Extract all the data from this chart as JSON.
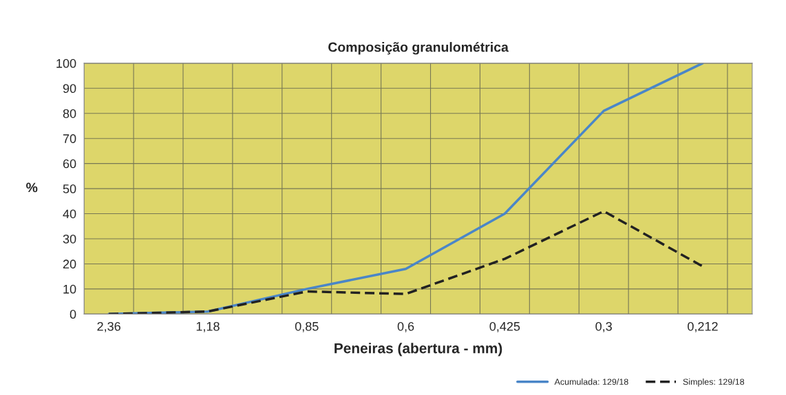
{
  "chart_data": {
    "type": "line",
    "title": "Composição granulométrica",
    "xlabel": "Peneiras (abertura - mm)",
    "ylabel": "%",
    "categories": [
      "2,36",
      "1,18",
      "0,85",
      "0,6",
      "0,425",
      "0,3",
      "0,212"
    ],
    "series": [
      {
        "name": "Acumulada: 129/18",
        "color": "#4a86c8",
        "values": [
          0,
          1,
          10,
          18,
          40,
          81,
          100
        ],
        "line_style": "solid"
      },
      {
        "name": "Simples: 129/18",
        "color": "#222222",
        "values": [
          0,
          1,
          9,
          8,
          22,
          41,
          19
        ],
        "line_style": "dashed"
      }
    ],
    "ylim": [
      0,
      100
    ],
    "yticks": [
      0,
      10,
      20,
      30,
      40,
      50,
      60,
      70,
      80,
      90,
      100
    ],
    "grid": true,
    "legend": "bottom right",
    "marker": "none"
  }
}
